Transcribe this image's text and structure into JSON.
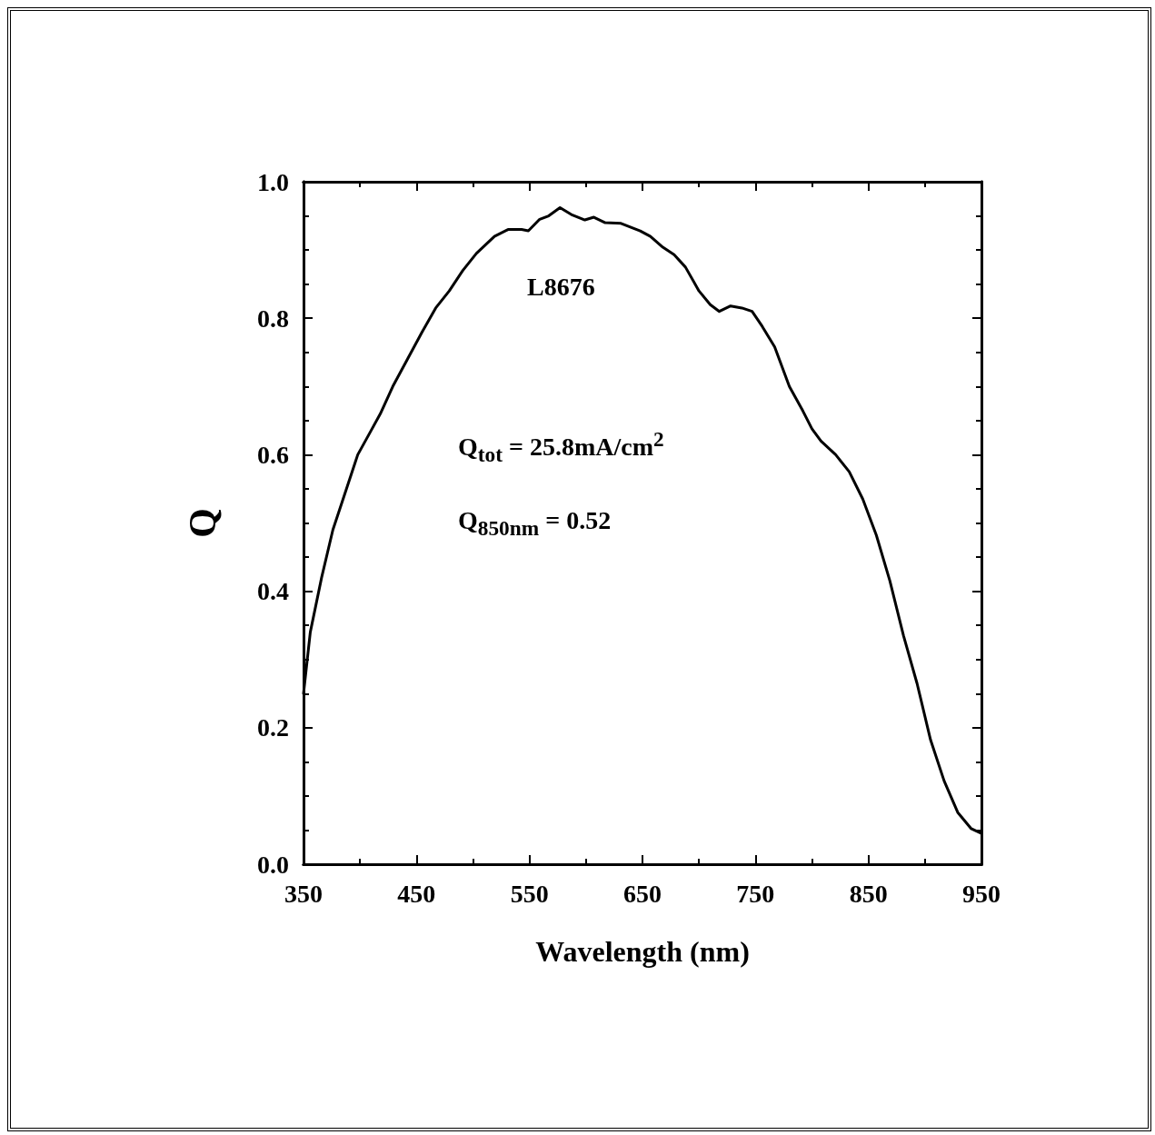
{
  "chart_data": {
    "type": "line",
    "xlabel": "Wavelength (nm)",
    "ylabel": "Q",
    "annotations": [
      "L8676",
      "Q$_{tot}$ = 25.8mA/cm$^{2}$",
      "Q$_{850nm}$ = 0.52"
    ],
    "x": [
      350,
      356,
      366,
      376,
      386,
      398,
      408,
      418,
      429,
      442,
      455,
      467,
      479,
      491,
      503,
      519,
      531,
      543,
      549,
      559,
      567,
      577,
      587,
      599,
      607,
      617,
      631,
      648,
      657,
      668,
      678,
      688,
      700,
      710,
      718,
      728,
      738,
      747,
      756,
      767,
      780,
      792,
      800,
      808,
      821,
      833,
      845,
      857,
      869,
      881,
      893,
      905,
      917,
      929,
      941,
      950
    ],
    "series": [
      {
        "color": "#000000",
        "values": [
          0.25,
          0.34,
          0.42,
          0.49,
          0.54,
          0.6,
          0.63,
          0.66,
          0.7,
          0.74,
          0.78,
          0.815,
          0.84,
          0.87,
          0.895,
          0.92,
          0.93,
          0.93,
          0.928,
          0.945,
          0.95,
          0.962,
          0.952,
          0.944,
          0.948,
          0.94,
          0.939,
          0.928,
          0.92,
          0.904,
          0.893,
          0.875,
          0.84,
          0.82,
          0.81,
          0.818,
          0.815,
          0.81,
          0.788,
          0.758,
          0.7,
          0.664,
          0.638,
          0.62,
          0.6,
          0.575,
          0.535,
          0.482,
          0.415,
          0.335,
          0.265,
          0.182,
          0.122,
          0.076,
          0.052,
          0.045
        ]
      }
    ],
    "xlim": [
      350,
      950
    ],
    "xticks": [
      350,
      450,
      550,
      650,
      750,
      850,
      950
    ],
    "ylim": [
      0,
      1
    ],
    "yticks": [
      {
        "value": 0,
        "label": "0.0"
      },
      0.2,
      0.4,
      0.6,
      0.8,
      {
        "value": 1,
        "label": "1.0"
      }
    ],
    "grid": false,
    "marker": "none",
    "line_style": "solid"
  }
}
